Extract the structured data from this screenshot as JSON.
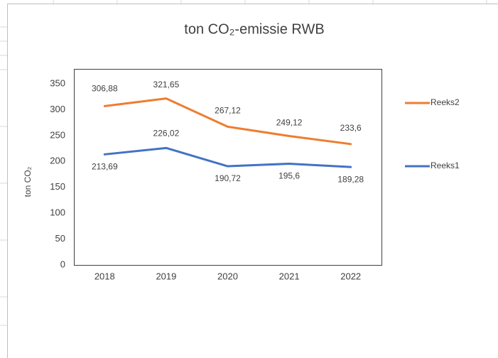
{
  "chart_data": {
    "type": "line",
    "title": "ton CO₂-emissie RWB",
    "y_label": "ton CO₂",
    "categories": [
      "2018",
      "2019",
      "2020",
      "2021",
      "2022"
    ],
    "series": [
      {
        "name": "Reeks2",
        "color": "#ED7D31",
        "values": [
          306.88,
          321.65,
          267.12,
          249.12,
          233.6
        ],
        "value_labels": [
          "306,88",
          "321,65",
          "267,12",
          "249,12",
          "233,6"
        ]
      },
      {
        "name": "Reeks1",
        "color": "#4472C4",
        "values": [
          213.69,
          226.02,
          190.72,
          195.6,
          189.28
        ],
        "value_labels": [
          "213,69",
          "226,02",
          "190,72",
          "195,6",
          "189,28"
        ]
      }
    ],
    "ylim": [
      0,
      350
    ],
    "yticks": [
      0,
      50,
      100,
      150,
      200,
      250,
      300,
      350
    ],
    "grid": false,
    "legend": "right"
  }
}
